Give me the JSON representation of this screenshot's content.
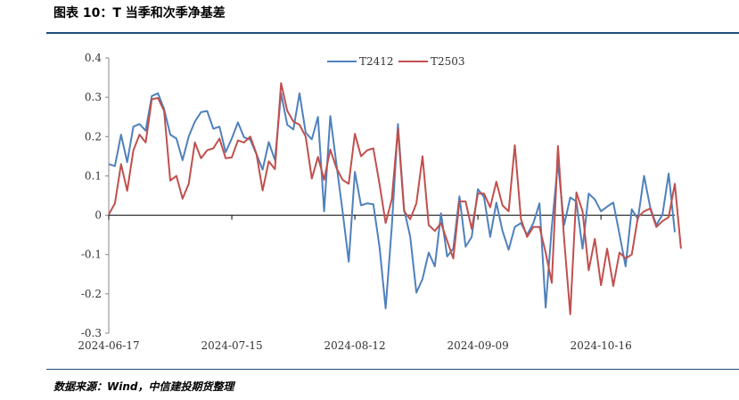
{
  "header": {
    "title": "图表 10：T 当季和次季净基差"
  },
  "footer": {
    "source": "数据来源：Wind，中信建投期货整理"
  },
  "chart_data": {
    "type": "line",
    "title": "",
    "xlabel": "",
    "ylabel": "",
    "ylim": [
      -0.3,
      0.4
    ],
    "yticks": [
      -0.3,
      -0.2,
      -0.1,
      0,
      0.1,
      0.2,
      0.3,
      0.4
    ],
    "ytick_labels": [
      "-0.3",
      "-0.2",
      "-0.1",
      "0",
      "0.1",
      "0.2",
      "0.3",
      "0.4"
    ],
    "xtick_labels": [
      "2024-06-17",
      "2024-07-15",
      "2024-08-12",
      "2024-09-09",
      "2024-10-16"
    ],
    "xtick_index": [
      0,
      20,
      40,
      60,
      80
    ],
    "legend_position": "top-center",
    "grid": false,
    "series": [
      {
        "name": "T2412",
        "color": "#4f81bd",
        "values": [
          0.13,
          0.125,
          0.205,
          0.135,
          0.225,
          0.232,
          0.215,
          0.303,
          0.31,
          0.27,
          0.205,
          0.195,
          0.14,
          0.2,
          0.238,
          0.262,
          0.265,
          0.22,
          0.225,
          0.16,
          0.195,
          0.236,
          0.198,
          0.192,
          0.155,
          0.116,
          0.186,
          0.14,
          0.31,
          0.23,
          0.218,
          0.31,
          0.21,
          0.193,
          0.25,
          0.01,
          0.252,
          0.13,
          0.01,
          -0.118,
          0.11,
          0.025,
          0.03,
          0.028,
          -0.08,
          -0.237,
          -0.03,
          0.232,
          0.015,
          -0.055,
          -0.197,
          -0.162,
          -0.095,
          -0.13,
          0.005,
          -0.105,
          -0.085,
          0.048,
          -0.08,
          -0.055,
          0.066,
          0.046,
          -0.055,
          0.032,
          -0.04,
          -0.088,
          -0.03,
          -0.02,
          -0.05,
          -0.02,
          0.03,
          -0.235,
          -0.03,
          0.134,
          -0.025,
          0.045,
          0.035,
          -0.085,
          0.055,
          0.04,
          0.01,
          0.022,
          0.032,
          -0.048,
          -0.13,
          0.015,
          -0.01,
          0.1,
          0.02,
          -0.025,
          0.002,
          0.106,
          -0.043
        ]
      },
      {
        "name": "T2503",
        "color": "#c0504d",
        "values": [
          0.002,
          0.03,
          0.13,
          0.062,
          0.165,
          0.205,
          0.185,
          0.295,
          0.298,
          0.265,
          0.088,
          0.1,
          0.042,
          0.08,
          0.185,
          0.145,
          0.165,
          0.17,
          0.195,
          0.145,
          0.147,
          0.19,
          0.185,
          0.2,
          0.156,
          0.063,
          0.137,
          0.117,
          0.336,
          0.266,
          0.238,
          0.23,
          0.2,
          0.093,
          0.148,
          0.09,
          0.167,
          0.12,
          0.09,
          0.08,
          0.207,
          0.15,
          0.165,
          0.17,
          0.08,
          -0.02,
          0.04,
          0.22,
          0.01,
          -0.01,
          0.03,
          0.15,
          -0.025,
          -0.04,
          -0.02,
          -0.065,
          -0.11,
          0.035,
          0.035,
          -0.035,
          0.055,
          0.055,
          0.02,
          0.085,
          0.025,
          0.01,
          0.178,
          -0.01,
          -0.055,
          -0.03,
          -0.03,
          -0.095,
          -0.172,
          0.176,
          -0.06,
          -0.252,
          0.058,
          0.01,
          -0.14,
          -0.06,
          -0.178,
          -0.085,
          -0.18,
          -0.095,
          -0.11,
          -0.1,
          -0.005,
          0.01,
          0.017,
          -0.03,
          -0.015,
          -0.005,
          0.08,
          -0.085
        ]
      }
    ]
  }
}
